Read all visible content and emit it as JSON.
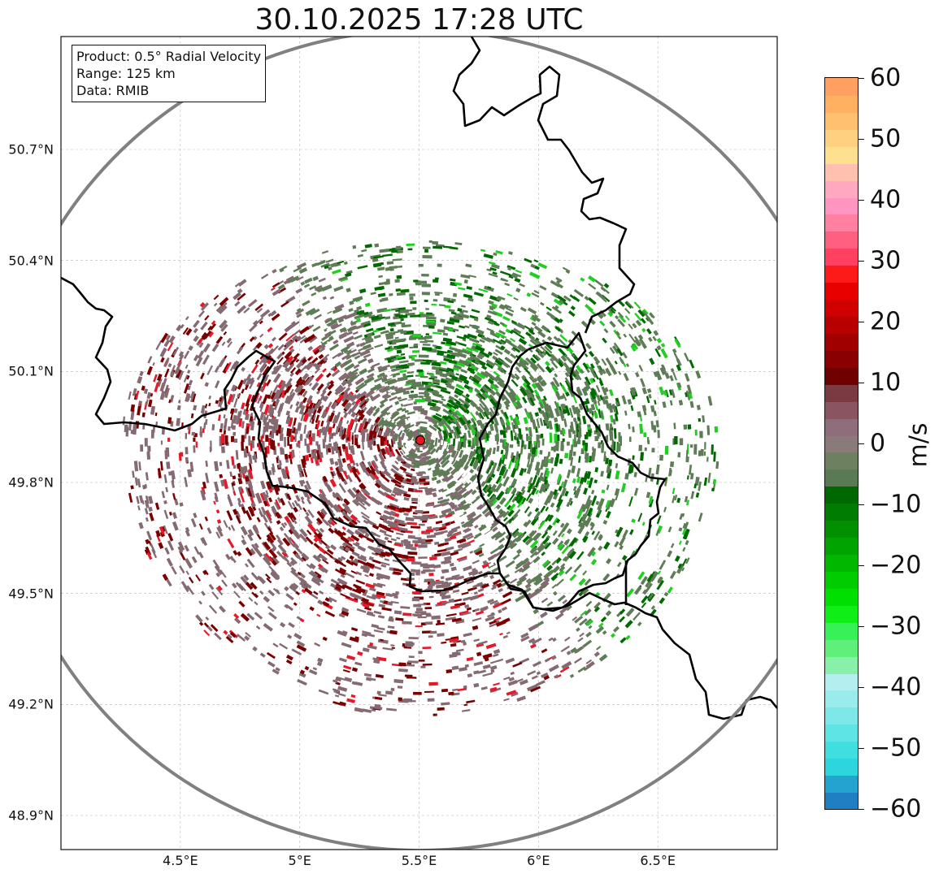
{
  "title": "30.10.2025 17:28 UTC",
  "info_box": {
    "product": "Product: 0.5° Radial Velocity",
    "range": "Range: 125 km",
    "data": "Data: RMIB"
  },
  "map_extent": {
    "lon": [
      4.0,
      7.0
    ],
    "lat": [
      48.8,
      51.0
    ]
  },
  "radar_site": {
    "lon": 5.505,
    "lat": 49.914,
    "color": "#e8161e"
  },
  "range_ring_km": 125,
  "x_ticks": [
    {
      "lon": 4.5,
      "label": "4.5°E"
    },
    {
      "lon": 5.0,
      "label": "5°E"
    },
    {
      "lon": 5.5,
      "label": "5.5°E"
    },
    {
      "lon": 6.0,
      "label": "6°E"
    },
    {
      "lon": 6.5,
      "label": "6.5°E"
    }
  ],
  "y_ticks": [
    {
      "lat": 50.7,
      "label": "50.7°N"
    },
    {
      "lat": 50.4,
      "label": "50.4°N"
    },
    {
      "lat": 50.1,
      "label": "50.1°N"
    },
    {
      "lat": 49.8,
      "label": "49.8°N"
    },
    {
      "lat": 49.5,
      "label": "49.5°N"
    },
    {
      "lat": 49.2,
      "label": "49.2°N"
    },
    {
      "lat": 48.9,
      "label": "48.9°N"
    }
  ],
  "colorbar": {
    "unit": "m/s",
    "range": [
      -60,
      60
    ],
    "ticks": [
      "60",
      "50",
      "40",
      "30",
      "20",
      "10",
      "0",
      "−10",
      "−20",
      "−30",
      "−40",
      "−50",
      "−60"
    ],
    "tick_values": [
      60,
      50,
      40,
      30,
      20,
      10,
      0,
      -10,
      -20,
      -30,
      -40,
      -50,
      -60
    ],
    "colors": [
      "#1f7fc0",
      "#23a4d0",
      "#2bd6dc",
      "#3fdfe0",
      "#5ee4e4",
      "#7ee8e8",
      "#9aecec",
      "#b4eeee",
      "#88f0a8",
      "#5ff07a",
      "#38f058",
      "#10ee18",
      "#00e000",
      "#00cc00",
      "#00b800",
      "#00a400",
      "#009000",
      "#007c00",
      "#006800",
      "#5a7a55",
      "#6d8060",
      "#8a7a7a",
      "#8e6e7a",
      "#8a5560",
      "#7a3a42",
      "#6e0000",
      "#8a0000",
      "#a00000",
      "#b80000",
      "#d00000",
      "#e80000",
      "#ff1a1a",
      "#ff4060",
      "#ff6080",
      "#ff80a0",
      "#ff95c0",
      "#ffa8c0",
      "#ffc0b0",
      "#ffe090",
      "#ffd080",
      "#ffc070",
      "#ffb060",
      "#ffa060"
    ]
  },
  "overlay_colors": {
    "ring": "#808080",
    "border": "#000000",
    "grid": "#b8b8b8",
    "inbound": "#5e7c55",
    "outbound": "#856a72",
    "strong_inbound": "#006a00",
    "strong_outbound": "#7a0000"
  }
}
